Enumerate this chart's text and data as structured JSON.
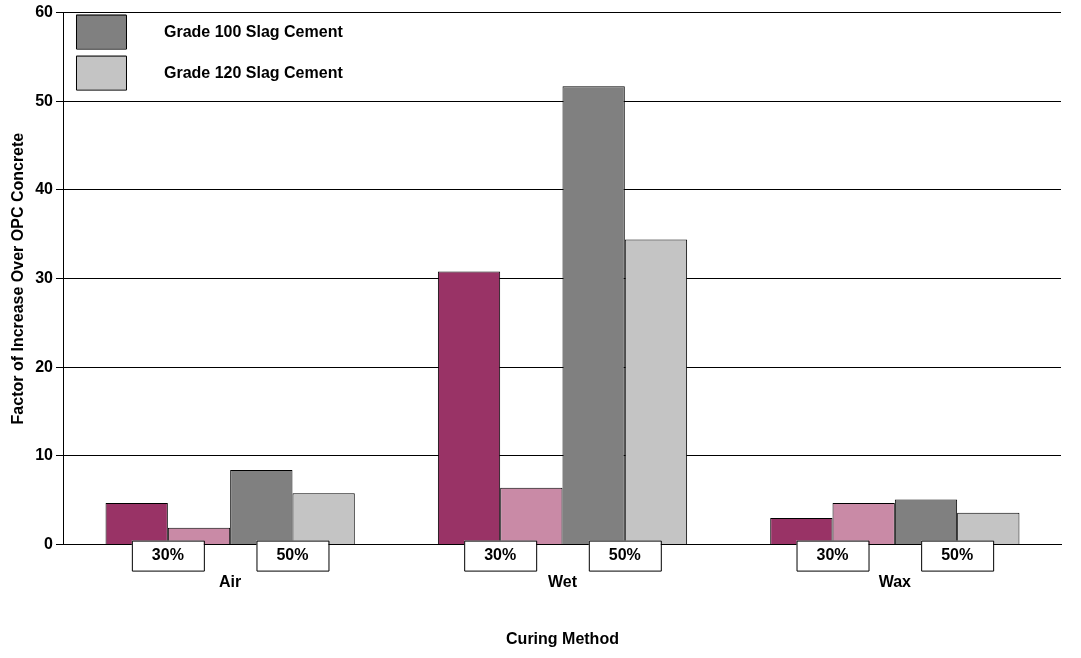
{
  "chart_data": {
    "type": "bar",
    "xlabel": "Curing Method",
    "ylabel": "Factor of Increase Over OPC Concrete",
    "categories": [
      "Air",
      "Wet",
      "Wax"
    ],
    "series": [
      {
        "color": "#993366",
        "values": [
          4.7,
          30.8,
          3.0
        ]
      },
      {
        "color": "#c98aa6",
        "values": [
          1.9,
          6.4,
          4.7
        ]
      },
      {
        "name": "Grade 100 Slag Cement",
        "color": "#808080",
        "values": [
          8.4,
          51.7,
          5.1
        ]
      },
      {
        "name": "Grade 120 Slag Cement",
        "color": "#c4c4c4",
        "values": [
          5.8,
          34.4,
          3.6
        ]
      }
    ],
    "ylim": [
      0,
      60
    ],
    "yticks": [
      0,
      10,
      20,
      30,
      40,
      50,
      60
    ],
    "grid": "y",
    "legend": "top left",
    "annotations": [
      {
        "text": "30%",
        "x": "Air",
        "y": 0
      },
      {
        "text": "50%",
        "x": "Air",
        "y": 0
      },
      {
        "text": "30%",
        "x": "Wet",
        "y": 0
      },
      {
        "text": "50%",
        "x": "Wet",
        "y": 0
      },
      {
        "text": "30%",
        "x": "Wax",
        "y": 0
      },
      {
        "text": "50%",
        "x": "Wax",
        "y": 0
      }
    ]
  }
}
